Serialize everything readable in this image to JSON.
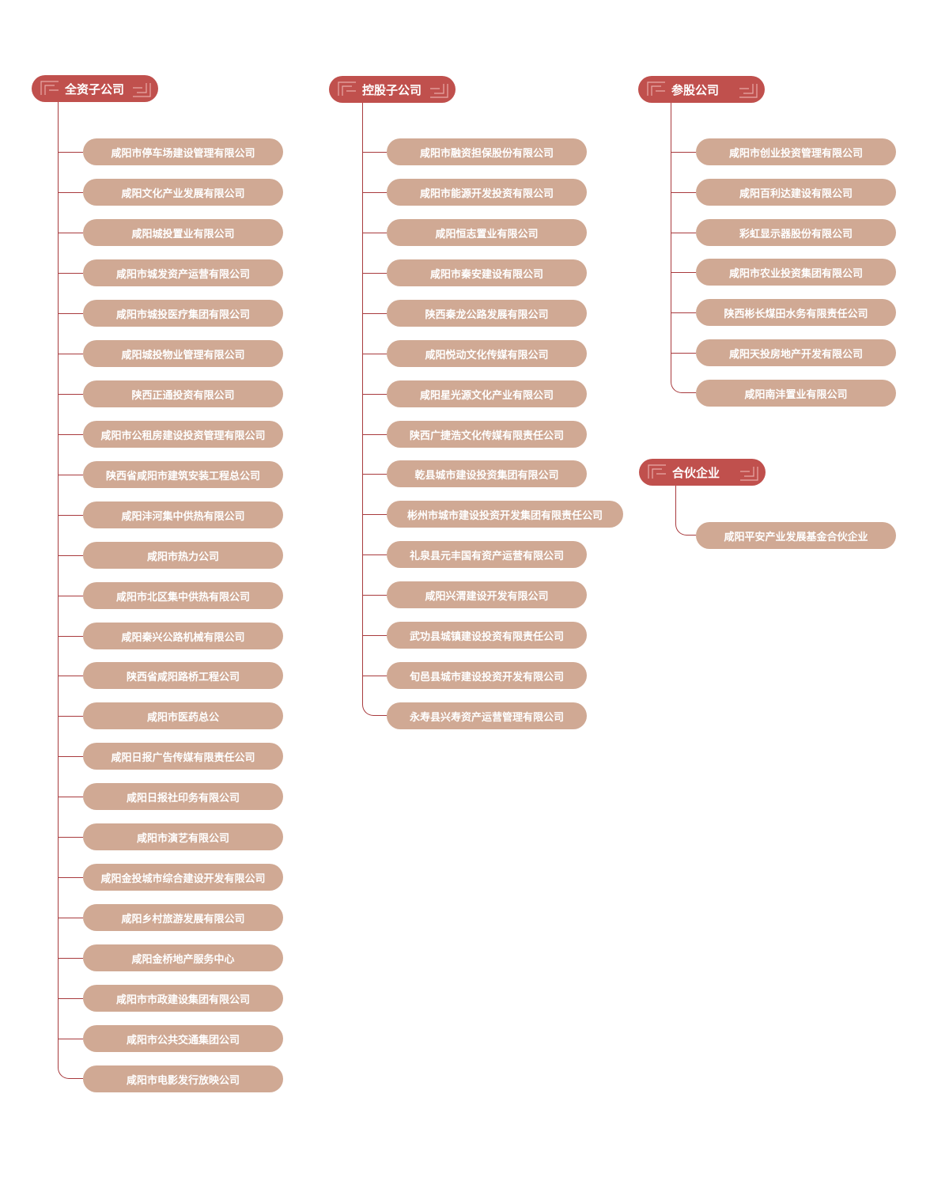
{
  "colors": {
    "header": "#c0504d",
    "item": "#d0a994",
    "line": "#a83a3d",
    "text": "#ffffff"
  },
  "groups": [
    {
      "title": "全资子公司",
      "items": [
        "咸阳市停车场建设管理有限公司",
        "咸阳文化产业发展有限公司",
        "咸阳城投置业有限公司",
        "咸阳市城发资产运营有限公司",
        "咸阳市城投医疗集团有限公司",
        "咸阳城投物业管理有限公司",
        "陕西正通投资有限公司",
        "咸阳市公租房建设投资管理有限公司",
        "陕西省咸阳市建筑安装工程总公司",
        "咸阳沣河集中供热有限公司",
        "咸阳市热力公司",
        "咸阳市北区集中供热有限公司",
        "咸阳秦兴公路机械有限公司",
        "陕西省咸阳路桥工程公司",
        "咸阳市医药总公",
        "咸阳日报广告传媒有限责任公司",
        "咸阳日报社印务有限公司",
        "咸阳市演艺有限公司",
        "咸阳金投城市综合建设开发有限公司",
        "咸阳乡村旅游发展有限公司",
        "咸阳金桥地产服务中心",
        "咸阳市市政建设集团有限公司",
        "咸阳市公共交通集团公司",
        "咸阳市电影发行放映公司"
      ]
    },
    {
      "title": "控股子公司",
      "items": [
        "咸阳市融资担保股份有限公司",
        "咸阳市能源开发投资有限公司",
        "咸阳恒志置业有限公司",
        "咸阳市秦安建设有限公司",
        "陕西秦龙公路发展有限公司",
        "咸阳悦动文化传媒有限公司",
        "咸阳星光源文化产业有限公司",
        "陕西广捷浩文化传媒有限责任公司",
        "乾县城市建设投资集团有限公司",
        "彬州市城市建设投资开发集团有限责任公司",
        "礼泉县元丰国有资产运营有限公司",
        "咸阳兴渭建设开发有限公司",
        "武功县城镇建设投资有限责任公司",
        "旬邑县城市建设投资开发有限公司",
        "永寿县兴寿资产运营管理有限公司"
      ]
    },
    {
      "title": "参股公司",
      "items": [
        "咸阳市创业投资管理有限公司",
        "咸阳百利达建设有限公司",
        "彩虹显示器股份有限公司",
        "咸阳市农业投资集团有限公司",
        "陕西彬长煤田水务有限责任公司",
        "咸阳天投房地产开发有限公司",
        "咸阳南沣置业有限公司"
      ]
    },
    {
      "title": "合伙企业",
      "items": [
        "咸阳平安产业发展基金合伙企业"
      ]
    }
  ]
}
